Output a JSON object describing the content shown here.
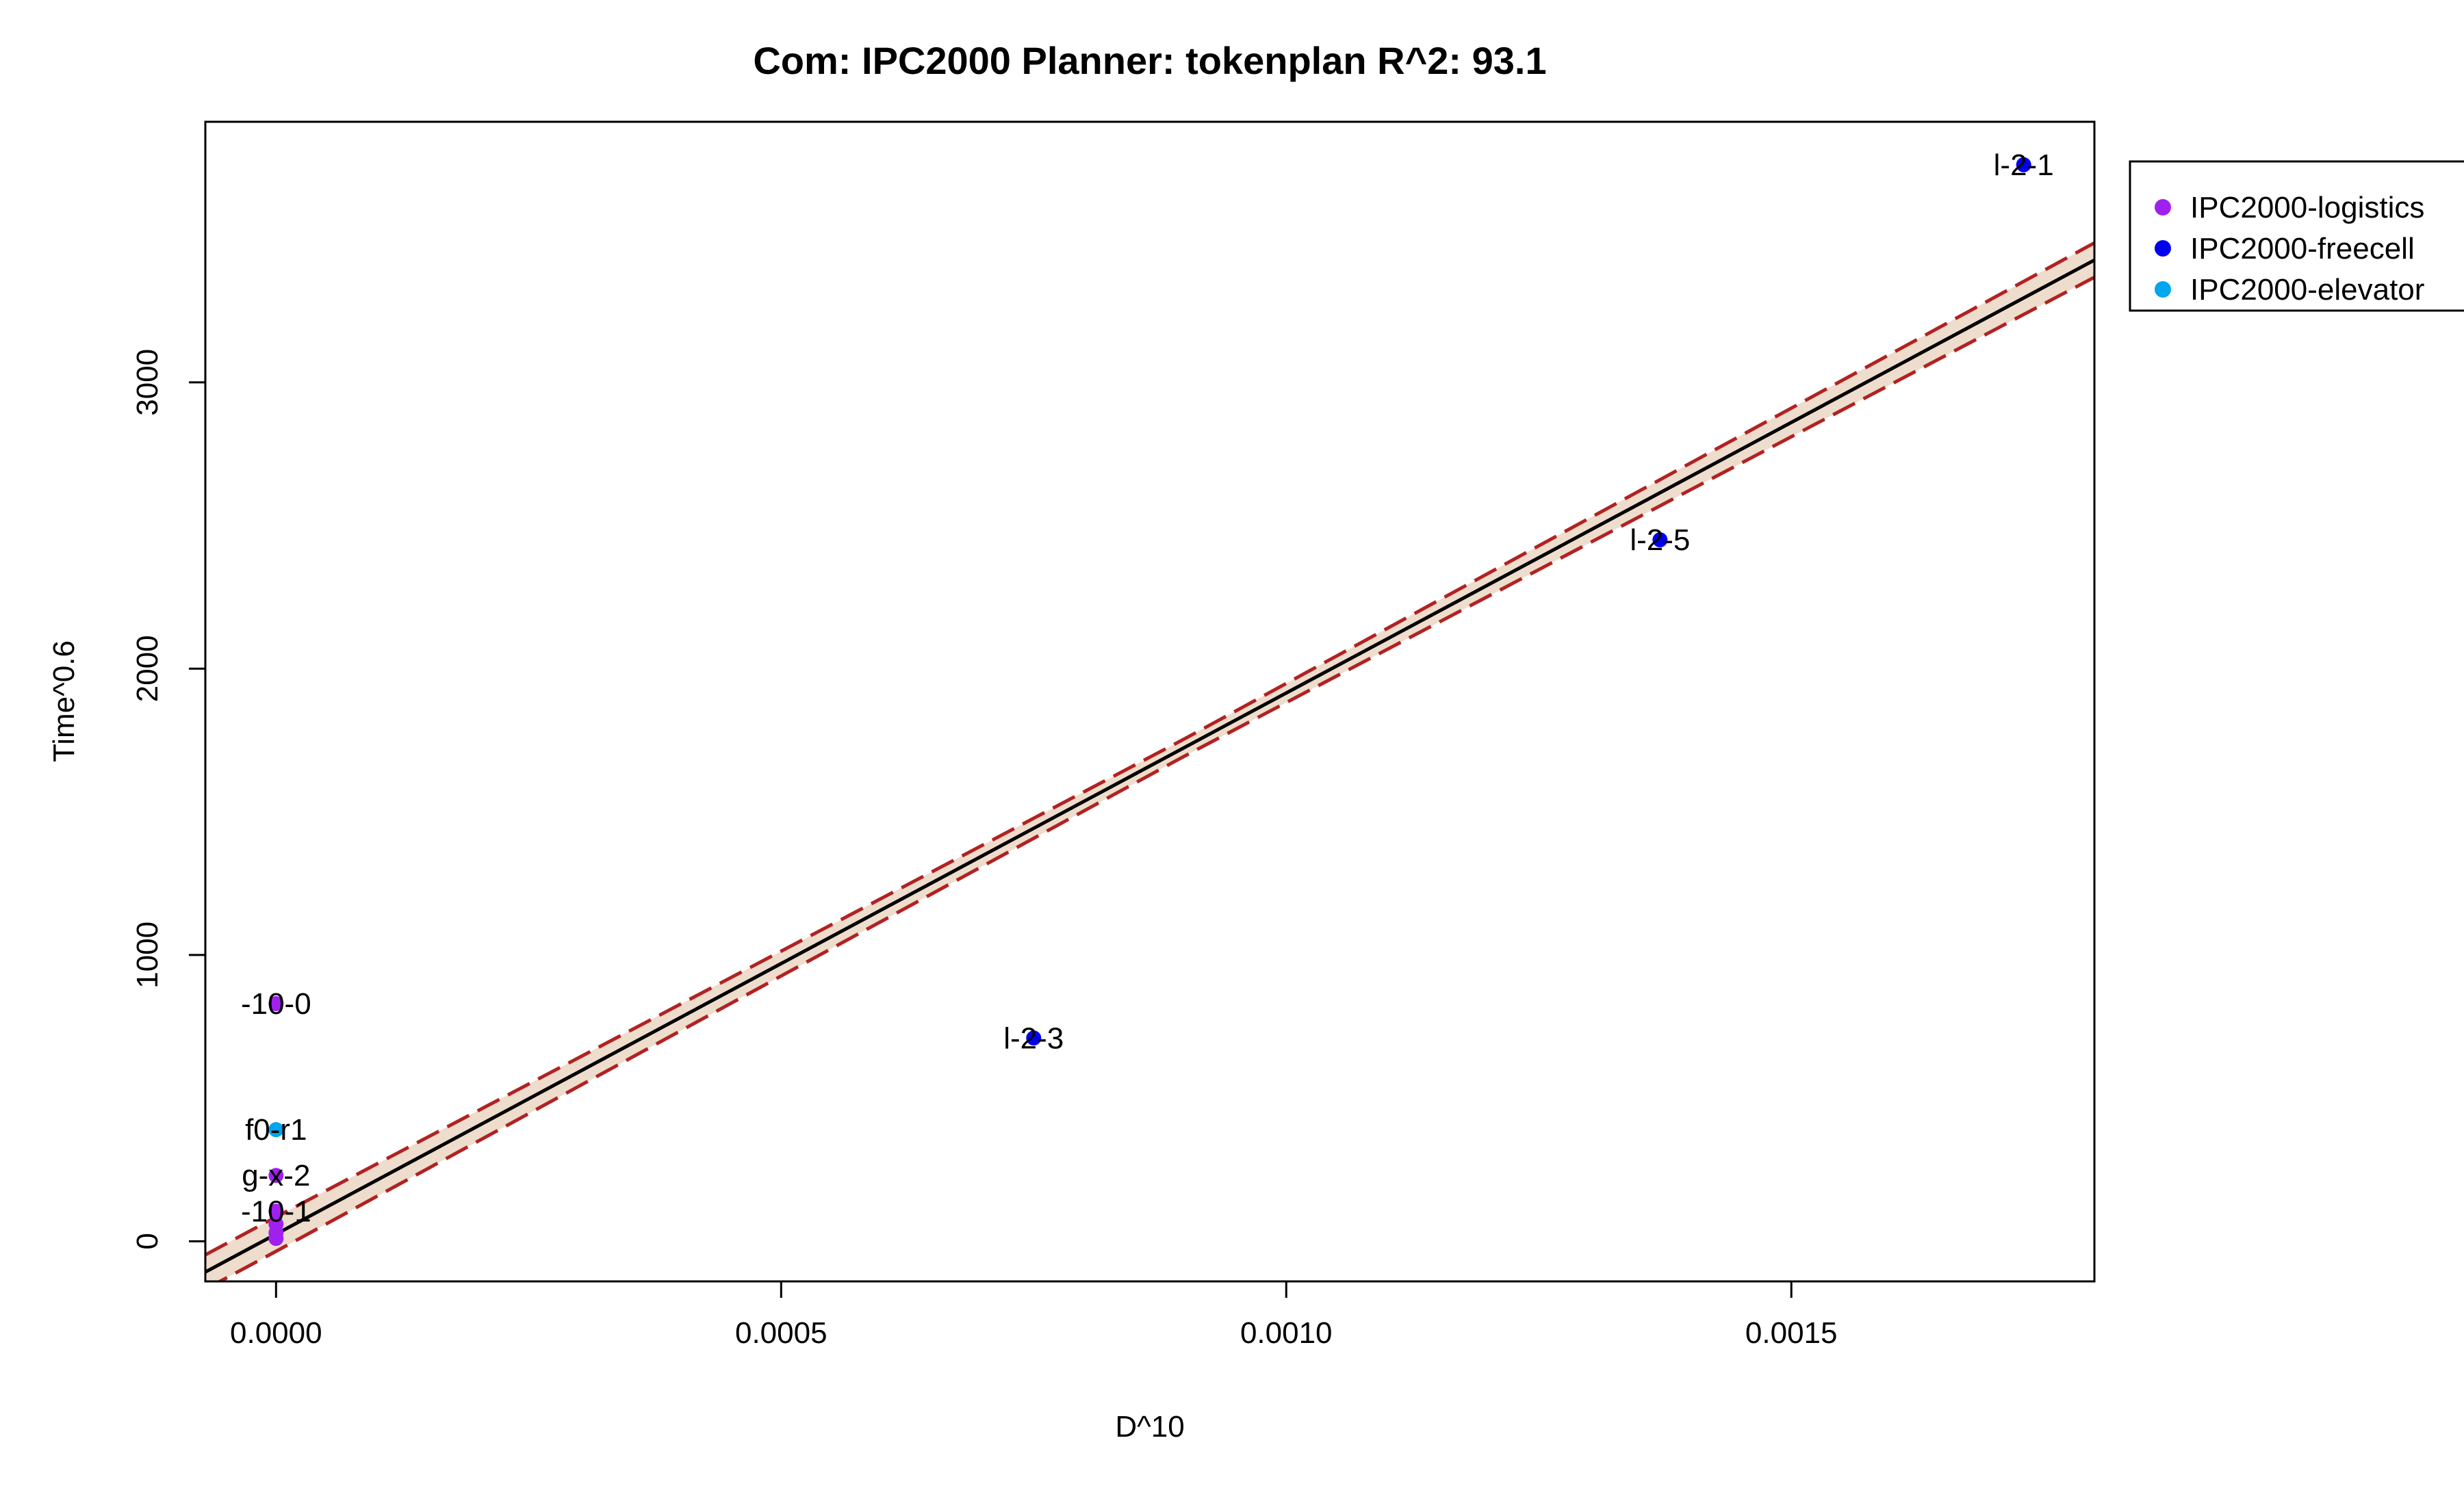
{
  "chart_data": {
    "type": "scatter",
    "title": "Com: IPC2000 Planner: tokenplan R^2: 93.1",
    "xlabel": "D^10",
    "ylabel": "Time^0.6",
    "xlim": [
      -7e-05,
      0.0018
    ],
    "ylim": [
      -140,
      3910
    ],
    "x_ticks": [
      0.0,
      0.0005,
      0.001,
      0.0015
    ],
    "x_tick_labels": [
      "0.0000",
      "0.0005",
      "0.0010",
      "0.0015"
    ],
    "y_ticks": [
      0,
      1000,
      2000,
      3000
    ],
    "y_tick_labels": [
      "0",
      "1000",
      "2000",
      "3000"
    ],
    "grid": false,
    "legend_position": "top-right outside",
    "series": [
      {
        "name": "IPC2000-logistics",
        "color": "#A020F0",
        "points": [
          {
            "x": 0.0,
            "y": 830,
            "label": "-10-0"
          },
          {
            "x": 0.0,
            "y": 230,
            "label": "g-x-2"
          },
          {
            "x": 0.0,
            "y": 105,
            "label": "-10-1"
          },
          {
            "x": 0.0,
            "y": 60,
            "label": ""
          },
          {
            "x": 0.0,
            "y": 30,
            "label": ""
          },
          {
            "x": 0.0,
            "y": 10,
            "label": ""
          }
        ]
      },
      {
        "name": "IPC2000-freecell",
        "color": "#0000EE",
        "points": [
          {
            "x": 0.00173,
            "y": 3760,
            "label": "l-2-1"
          },
          {
            "x": 0.00137,
            "y": 2450,
            "label": "l-2-5"
          },
          {
            "x": 0.00075,
            "y": 710,
            "label": "l-2-3"
          }
        ]
      },
      {
        "name": "IPC2000-elevator",
        "color": "#00A5EE",
        "points": [
          {
            "x": 0.0,
            "y": 390,
            "label": "f0-r1"
          }
        ]
      }
    ],
    "fit": {
      "intercept": 25,
      "slope": 1890000,
      "conf_halfwidth_center": 30,
      "conf_halfwidth_edge": 60,
      "fit_color": "#000000",
      "band_color": "#B22222",
      "band_fill": "#EEDDCC"
    }
  }
}
